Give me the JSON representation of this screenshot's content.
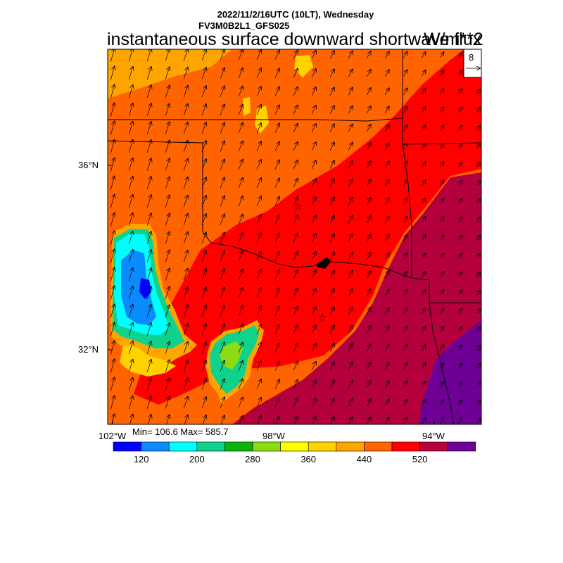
{
  "header": {
    "line1": "2022/11/2/16UTC (10LT), Wednesday",
    "line2": "FV3M0B2L1_GFS025",
    "variable": "instantaneous surface downward shortwave flux",
    "units": "W/m**2"
  },
  "reference_vector": {
    "magnitude": "8"
  },
  "axes": {
    "lat_labels": [
      "36°N",
      "32°N"
    ],
    "lon_labels": [
      "102°W",
      "98°W",
      "94°W"
    ]
  },
  "stats": {
    "text": "Min= 106.6 Max= 585.7"
  },
  "colorbar": {
    "colors": [
      "#0000ff",
      "#0a8cff",
      "#00ffff",
      "#0fd28c",
      "#0ab40a",
      "#8cdc14",
      "#ffff00",
      "#ffd200",
      "#ffa500",
      "#ff6400",
      "#ff0000",
      "#b4003c",
      "#6e0096"
    ],
    "tick_labels": [
      "120",
      "200",
      "280",
      "360",
      "440",
      "520"
    ]
  },
  "map": {
    "region": "Southern Plains (Oklahoma / Texas)",
    "field_levels": "banded, 40 W/m**2 interval",
    "wind_vectors": "southerly, pointing north-northeast",
    "markers": [
      "star",
      "star"
    ]
  }
}
